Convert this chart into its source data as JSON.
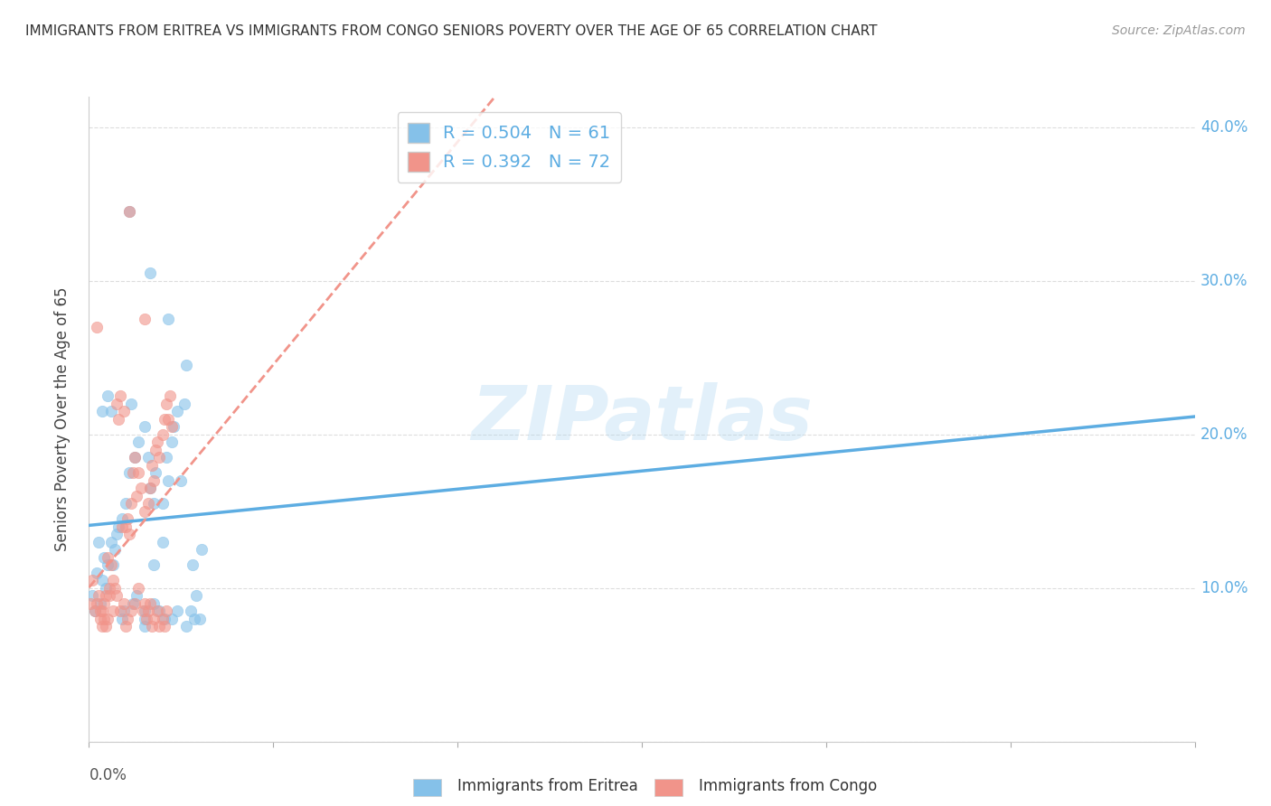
{
  "title": "IMMIGRANTS FROM ERITREA VS IMMIGRANTS FROM CONGO SENIORS POVERTY OVER THE AGE OF 65 CORRELATION CHART",
  "source": "Source: ZipAtlas.com",
  "ylabel": "Seniors Poverty Over the Age of 65",
  "xlim": [
    0.0,
    0.06
  ],
  "ylim": [
    0.0,
    0.42
  ],
  "ytick_vals": [
    0.0,
    0.1,
    0.2,
    0.3,
    0.4
  ],
  "ytick_labels": [
    "",
    "10.0%",
    "20.0%",
    "30.0%",
    "40.0%"
  ],
  "legend_eritrea_R": "0.504",
  "legend_eritrea_N": "61",
  "legend_congo_R": "0.392",
  "legend_congo_N": "72",
  "color_eritrea": "#85c1e9",
  "color_congo": "#f1948a",
  "color_eritrea_line": "#5dade2",
  "color_congo_line": "#f1948a",
  "watermark": "ZIPatlas",
  "eritrea_scatter": [
    [
      0.0002,
      0.095
    ],
    [
      0.0003,
      0.085
    ],
    [
      0.0004,
      0.11
    ],
    [
      0.0005,
      0.13
    ],
    [
      0.0006,
      0.09
    ],
    [
      0.0007,
      0.105
    ],
    [
      0.0008,
      0.12
    ],
    [
      0.0009,
      0.1
    ],
    [
      0.001,
      0.115
    ],
    [
      0.0012,
      0.13
    ],
    [
      0.0013,
      0.115
    ],
    [
      0.0014,
      0.125
    ],
    [
      0.0015,
      0.135
    ],
    [
      0.0016,
      0.14
    ],
    [
      0.0018,
      0.145
    ],
    [
      0.002,
      0.155
    ],
    [
      0.0022,
      0.175
    ],
    [
      0.0023,
      0.22
    ],
    [
      0.0025,
      0.185
    ],
    [
      0.0027,
      0.195
    ],
    [
      0.003,
      0.205
    ],
    [
      0.0032,
      0.185
    ],
    [
      0.0033,
      0.165
    ],
    [
      0.0035,
      0.155
    ],
    [
      0.0036,
      0.175
    ],
    [
      0.004,
      0.155
    ],
    [
      0.0042,
      0.185
    ],
    [
      0.0043,
      0.17
    ],
    [
      0.0045,
      0.195
    ],
    [
      0.0046,
      0.205
    ],
    [
      0.0048,
      0.215
    ],
    [
      0.005,
      0.17
    ],
    [
      0.0052,
      0.22
    ],
    [
      0.0053,
      0.245
    ],
    [
      0.0022,
      0.345
    ],
    [
      0.0033,
      0.305
    ],
    [
      0.0055,
      0.085
    ],
    [
      0.0056,
      0.115
    ],
    [
      0.0057,
      0.08
    ],
    [
      0.0058,
      0.095
    ],
    [
      0.006,
      0.08
    ],
    [
      0.0061,
      0.125
    ],
    [
      0.0043,
      0.275
    ],
    [
      0.004,
      0.13
    ],
    [
      0.0018,
      0.08
    ],
    [
      0.0019,
      0.085
    ],
    [
      0.0007,
      0.215
    ],
    [
      0.001,
      0.225
    ],
    [
      0.0012,
      0.215
    ],
    [
      0.0024,
      0.09
    ],
    [
      0.0026,
      0.095
    ],
    [
      0.003,
      0.085
    ],
    [
      0.003,
      0.08
    ],
    [
      0.003,
      0.075
    ],
    [
      0.0035,
      0.09
    ],
    [
      0.0038,
      0.085
    ],
    [
      0.0041,
      0.08
    ],
    [
      0.0035,
      0.115
    ],
    [
      0.0048,
      0.085
    ],
    [
      0.0053,
      0.075
    ],
    [
      0.0045,
      0.08
    ]
  ],
  "congo_scatter": [
    [
      0.0001,
      0.09
    ],
    [
      0.0002,
      0.105
    ],
    [
      0.0003,
      0.085
    ],
    [
      0.0004,
      0.09
    ],
    [
      0.0005,
      0.095
    ],
    [
      0.0006,
      0.08
    ],
    [
      0.0007,
      0.085
    ],
    [
      0.0008,
      0.09
    ],
    [
      0.0009,
      0.095
    ],
    [
      0.001,
      0.12
    ],
    [
      0.0011,
      0.1
    ],
    [
      0.0012,
      0.115
    ],
    [
      0.0013,
      0.105
    ],
    [
      0.0014,
      0.1
    ],
    [
      0.0015,
      0.22
    ],
    [
      0.0016,
      0.21
    ],
    [
      0.0017,
      0.225
    ],
    [
      0.0018,
      0.14
    ],
    [
      0.0019,
      0.215
    ],
    [
      0.002,
      0.14
    ],
    [
      0.0021,
      0.145
    ],
    [
      0.0022,
      0.135
    ],
    [
      0.0023,
      0.155
    ],
    [
      0.0024,
      0.175
    ],
    [
      0.0025,
      0.185
    ],
    [
      0.0026,
      0.16
    ],
    [
      0.0027,
      0.175
    ],
    [
      0.0028,
      0.165
    ],
    [
      0.003,
      0.15
    ],
    [
      0.0032,
      0.155
    ],
    [
      0.0033,
      0.165
    ],
    [
      0.0034,
      0.18
    ],
    [
      0.0035,
      0.17
    ],
    [
      0.0036,
      0.19
    ],
    [
      0.0037,
      0.195
    ],
    [
      0.0038,
      0.185
    ],
    [
      0.004,
      0.2
    ],
    [
      0.0041,
      0.21
    ],
    [
      0.0042,
      0.22
    ],
    [
      0.0043,
      0.21
    ],
    [
      0.0044,
      0.225
    ],
    [
      0.0045,
      0.205
    ],
    [
      0.0022,
      0.345
    ],
    [
      0.003,
      0.275
    ],
    [
      0.0004,
      0.27
    ],
    [
      0.0006,
      0.085
    ],
    [
      0.0007,
      0.075
    ],
    [
      0.0008,
      0.08
    ],
    [
      0.0009,
      0.075
    ],
    [
      0.001,
      0.08
    ],
    [
      0.0011,
      0.095
    ],
    [
      0.0013,
      0.085
    ],
    [
      0.0015,
      0.095
    ],
    [
      0.0017,
      0.085
    ],
    [
      0.0019,
      0.09
    ],
    [
      0.002,
      0.075
    ],
    [
      0.0021,
      0.08
    ],
    [
      0.0023,
      0.085
    ],
    [
      0.0025,
      0.09
    ],
    [
      0.0027,
      0.1
    ],
    [
      0.0029,
      0.085
    ],
    [
      0.003,
      0.09
    ],
    [
      0.0031,
      0.08
    ],
    [
      0.0032,
      0.085
    ],
    [
      0.0033,
      0.09
    ],
    [
      0.0034,
      0.075
    ],
    [
      0.0035,
      0.08
    ],
    [
      0.0037,
      0.085
    ],
    [
      0.0038,
      0.075
    ],
    [
      0.004,
      0.08
    ],
    [
      0.0041,
      0.075
    ],
    [
      0.0042,
      0.085
    ]
  ]
}
